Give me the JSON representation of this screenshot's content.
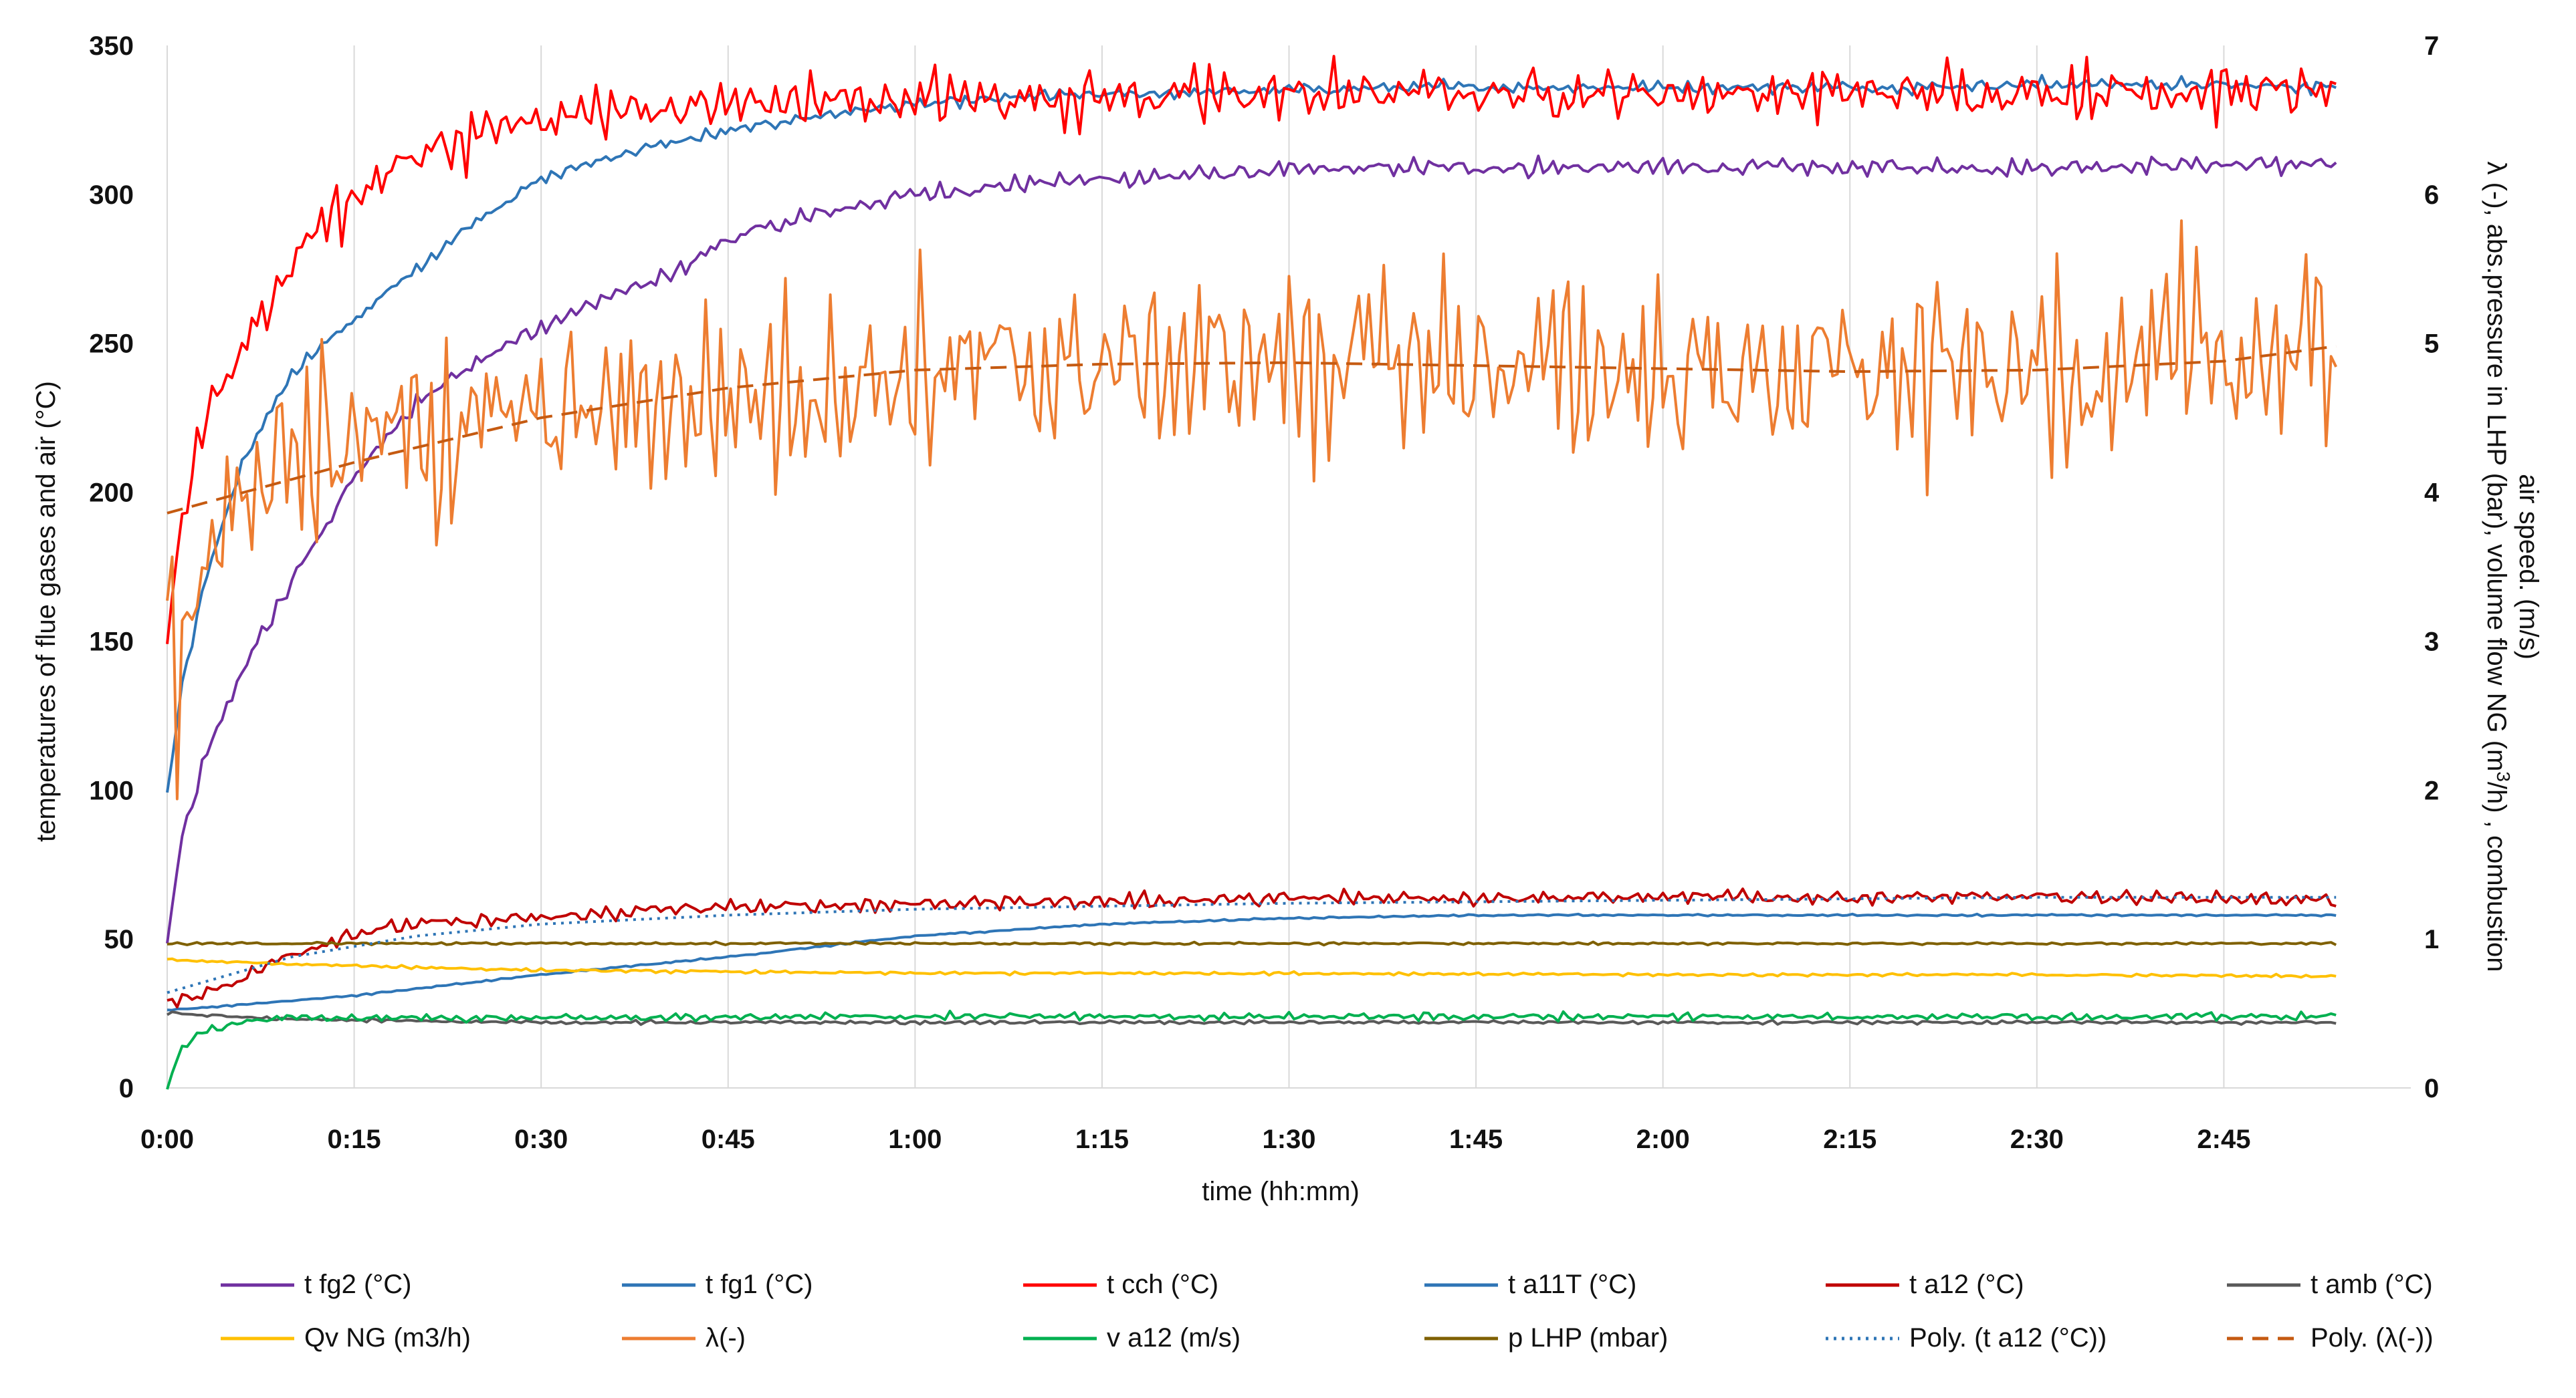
{
  "chart_data": {
    "type": "line",
    "xlabel": "time (hh:mm)",
    "ylabel_left": "temperatures of flue gases and air (°C)",
    "ylabel_right_line1": "λ (-), abs.pressure in LHP (bar), volume flow NG (m",
    "ylabel_right_sup": "3",
    "ylabel_right_line1_end": "/h) , combustion",
    "ylabel_right_line2": "air speed. (m/s)",
    "xlim": [
      0,
      180
    ],
    "ylim_left": [
      0,
      350
    ],
    "ylim_right": [
      0,
      7
    ],
    "x_ticks": [
      0,
      15,
      30,
      45,
      60,
      75,
      90,
      105,
      120,
      135,
      150,
      165
    ],
    "x_tick_labels": [
      "0:00",
      "0:15",
      "0:30",
      "0:45",
      "1:00",
      "1:15",
      "1:30",
      "1:45",
      "2:00",
      "2:15",
      "2:30",
      "2:45"
    ],
    "y_left_ticks": [
      0,
      50,
      100,
      150,
      200,
      250,
      300,
      350
    ],
    "y_left_tick_labels": [
      "0",
      "50",
      "100",
      "150",
      "200",
      "250",
      "300",
      "350"
    ],
    "y_right_ticks": [
      0,
      1,
      2,
      3,
      4,
      5,
      6,
      7
    ],
    "y_right_tick_labels": [
      "0",
      "1",
      "2",
      "3",
      "4",
      "5",
      "6",
      "7"
    ],
    "x_end": 174,
    "series": [
      {
        "name": "t fg2 (°C)",
        "axis": "left",
        "color": "#7030a0",
        "dash": "solid",
        "points": [
          [
            0,
            48
          ],
          [
            1,
            80
          ],
          [
            3,
            110
          ],
          [
            6,
            140
          ],
          [
            10,
            170
          ],
          [
            15,
            205
          ],
          [
            20,
            230
          ],
          [
            25,
            245
          ],
          [
            30,
            255
          ],
          [
            35,
            265
          ],
          [
            40,
            272
          ],
          [
            45,
            285
          ],
          [
            50,
            291
          ],
          [
            55,
            296
          ],
          [
            60,
            300
          ],
          [
            70,
            304
          ],
          [
            80,
            306
          ],
          [
            90,
            308
          ],
          [
            100,
            309
          ],
          [
            110,
            309
          ],
          [
            120,
            309
          ],
          [
            130,
            309
          ],
          [
            140,
            309
          ],
          [
            150,
            309
          ],
          [
            160,
            310
          ],
          [
            174,
            310
          ]
        ],
        "noise": 3
      },
      {
        "name": "t fg1 (°C)",
        "axis": "left",
        "color": "#2e75b6",
        "dash": "solid",
        "points": [
          [
            0,
            97
          ],
          [
            1,
            130
          ],
          [
            3,
            170
          ],
          [
            6,
            210
          ],
          [
            10,
            240
          ],
          [
            15,
            258
          ],
          [
            20,
            275
          ],
          [
            25,
            292
          ],
          [
            30,
            305
          ],
          [
            35,
            312
          ],
          [
            40,
            317
          ],
          [
            45,
            321
          ],
          [
            50,
            325
          ],
          [
            55,
            328
          ],
          [
            60,
            330
          ],
          [
            70,
            333
          ],
          [
            80,
            334
          ],
          [
            90,
            335
          ],
          [
            100,
            336
          ],
          [
            110,
            336
          ],
          [
            120,
            336
          ],
          [
            130,
            336
          ],
          [
            140,
            336
          ],
          [
            150,
            337
          ],
          [
            160,
            337
          ],
          [
            174,
            336
          ]
        ],
        "noise": 2
      },
      {
        "name": "t cch (°C)",
        "axis": "left",
        "color": "#ff0000",
        "dash": "solid",
        "points": [
          [
            0,
            155
          ],
          [
            1,
            190
          ],
          [
            3,
            225
          ],
          [
            6,
            250
          ],
          [
            10,
            275
          ],
          [
            15,
            300
          ],
          [
            20,
            312
          ],
          [
            25,
            320
          ],
          [
            30,
            326
          ],
          [
            40,
            329
          ],
          [
            50,
            331
          ],
          [
            60,
            332
          ],
          [
            80,
            333
          ],
          [
            100,
            334
          ],
          [
            120,
            334
          ],
          [
            140,
            334
          ],
          [
            160,
            335
          ],
          [
            174,
            334
          ]
        ],
        "noise": 9
      },
      {
        "name": "t a11T (°C)",
        "axis": "left",
        "color": "#2e75b6",
        "dash": "solid",
        "points": [
          [
            0,
            26
          ],
          [
            15,
            31
          ],
          [
            30,
            38
          ],
          [
            45,
            44
          ],
          [
            60,
            51
          ],
          [
            75,
            55
          ],
          [
            90,
            57
          ],
          [
            105,
            58
          ],
          [
            120,
            58
          ],
          [
            135,
            58
          ],
          [
            150,
            58
          ],
          [
            165,
            58
          ],
          [
            174,
            58
          ]
        ],
        "noise": 0.3
      },
      {
        "name": "t a12 (°C)",
        "axis": "left",
        "color": "#c00000",
        "dash": "solid",
        "points": [
          [
            0,
            28
          ],
          [
            5,
            35
          ],
          [
            10,
            45
          ],
          [
            15,
            52
          ],
          [
            20,
            55
          ],
          [
            30,
            57
          ],
          [
            40,
            60
          ],
          [
            50,
            61
          ],
          [
            60,
            62
          ],
          [
            80,
            63
          ],
          [
            100,
            64
          ],
          [
            120,
            64
          ],
          [
            140,
            64
          ],
          [
            160,
            64
          ],
          [
            174,
            63
          ]
        ],
        "noise": 2.5
      },
      {
        "name": "t amb (°C)",
        "axis": "left",
        "color": "#595959",
        "dash": "solid",
        "points": [
          [
            0,
            25
          ],
          [
            10,
            23
          ],
          [
            30,
            22
          ],
          [
            60,
            22
          ],
          [
            90,
            22
          ],
          [
            120,
            22
          ],
          [
            150,
            22
          ],
          [
            174,
            22
          ]
        ],
        "noise": 0.6
      },
      {
        "name": "Qv NG (m3/h)",
        "axis": "right",
        "color": "#ffc000",
        "dash": "solid",
        "points": [
          [
            0,
            0.86
          ],
          [
            10,
            0.83
          ],
          [
            30,
            0.79
          ],
          [
            60,
            0.77
          ],
          [
            90,
            0.77
          ],
          [
            120,
            0.76
          ],
          [
            150,
            0.76
          ],
          [
            174,
            0.75
          ]
        ],
        "noise": 0.01
      },
      {
        "name": "λ(-)",
        "axis": "right",
        "color": "#ed7d31",
        "dash": "solid",
        "points": [
          [
            0,
            3.1
          ],
          [
            1,
            2.9
          ],
          [
            2,
            3.3
          ],
          [
            4,
            3.8
          ],
          [
            6,
            4.1
          ],
          [
            10,
            4.3
          ],
          [
            20,
            4.4
          ],
          [
            40,
            4.6
          ],
          [
            60,
            4.8
          ],
          [
            90,
            4.9
          ],
          [
            120,
            4.8
          ],
          [
            150,
            4.8
          ],
          [
            174,
            4.95
          ]
        ],
        "noise": 0.65
      },
      {
        "name": "v a12 (m/s)",
        "axis": "right",
        "color": "#00b050",
        "dash": "solid",
        "points": [
          [
            0,
            0.0
          ],
          [
            1,
            0.25
          ],
          [
            3,
            0.38
          ],
          [
            6,
            0.45
          ],
          [
            10,
            0.47
          ],
          [
            30,
            0.47
          ],
          [
            60,
            0.48
          ],
          [
            90,
            0.48
          ],
          [
            120,
            0.48
          ],
          [
            150,
            0.48
          ],
          [
            174,
            0.48
          ]
        ],
        "noise": 0.025
      },
      {
        "name": "p LHP (mbar)",
        "axis": "right",
        "color": "#7f6000",
        "dash": "solid",
        "points": [
          [
            0,
            0.97
          ],
          [
            30,
            0.97
          ],
          [
            60,
            0.97
          ],
          [
            90,
            0.97
          ],
          [
            120,
            0.97
          ],
          [
            150,
            0.97
          ],
          [
            174,
            0.97
          ]
        ],
        "noise": 0.008
      },
      {
        "name": "Poly. (t a12 (°C))",
        "axis": "left",
        "color": "#2e75b6",
        "dash": "dotted",
        "points": [
          [
            0,
            32
          ],
          [
            10,
            44
          ],
          [
            20,
            51
          ],
          [
            30,
            55
          ],
          [
            45,
            58
          ],
          [
            60,
            60
          ],
          [
            90,
            62
          ],
          [
            120,
            63
          ],
          [
            150,
            64
          ],
          [
            174,
            64
          ]
        ],
        "noise": 0
      },
      {
        "name": "Poly. (λ(-))",
        "axis": "right",
        "color": "#c55a11",
        "dash": "dashed",
        "points": [
          [
            0,
            3.86
          ],
          [
            15,
            4.2
          ],
          [
            30,
            4.5
          ],
          [
            45,
            4.7
          ],
          [
            60,
            4.82
          ],
          [
            75,
            4.86
          ],
          [
            90,
            4.87
          ],
          [
            105,
            4.85
          ],
          [
            120,
            4.83
          ],
          [
            135,
            4.81
          ],
          [
            150,
            4.82
          ],
          [
            165,
            4.88
          ],
          [
            174,
            4.98
          ]
        ],
        "noise": 0
      }
    ],
    "legend": {
      "position": "bottom",
      "rows": [
        [
          "t fg2 (°C)",
          "t fg1 (°C)",
          "t cch (°C)",
          "t a11T (°C)",
          "t a12 (°C)",
          "t amb (°C)"
        ],
        [
          "Qv NG (m3/h)",
          "λ(-)",
          "v a12 (m/s)",
          "p LHP (mbar)",
          "Poly. (t a12 (°C))",
          "Poly. (λ(-))"
        ]
      ]
    }
  }
}
